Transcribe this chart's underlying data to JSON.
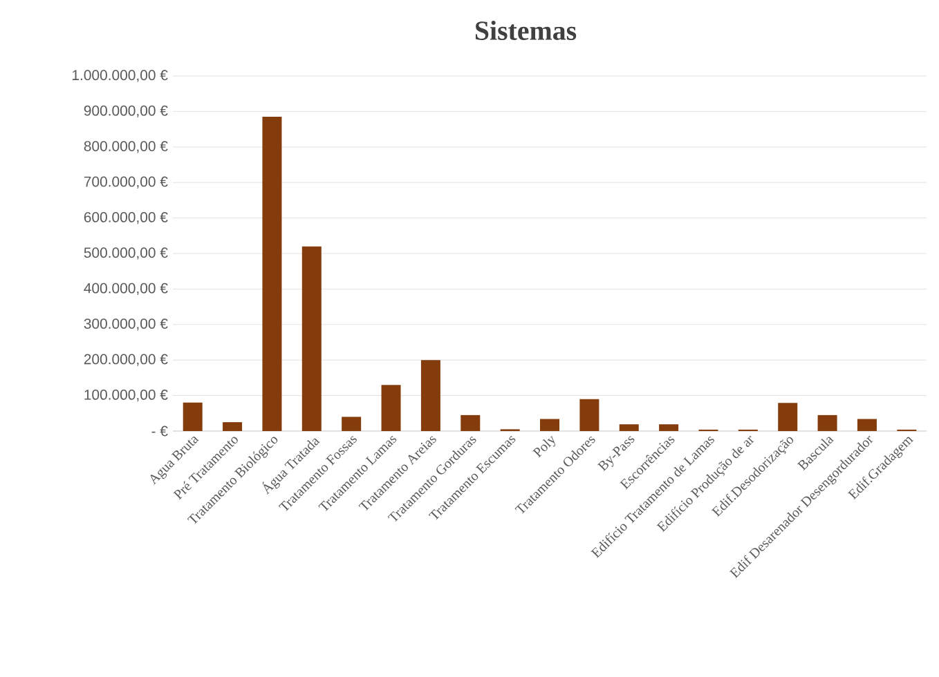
{
  "chart_data": {
    "type": "bar",
    "title": "Sistemas",
    "categories": [
      "Agua Bruta",
      "Pré Tratamento",
      "Tratamento Biológico",
      "Água Tratada",
      "Tratamento Fossas",
      "Tratamento Lamas",
      "Tratamento Areias",
      "Tratamento Gorduras",
      "Tratamento Escumas",
      "Poly",
      "Tratamento Odores",
      "By-Pass",
      "Escorrências",
      "Edifício Tratamento de Lamas",
      "Edifício Produção de ar",
      "Edif.Desodorização",
      "Bascula",
      "Edif Desarenador Desengordurador",
      "Edif.Gradagem"
    ],
    "values": [
      80000,
      25000,
      885000,
      520000,
      40000,
      130000,
      200000,
      45000,
      5000,
      34000,
      90000,
      19000,
      19000,
      4000,
      4000,
      79000,
      45000,
      34000,
      4000
    ],
    "color": "#843c0c",
    "ylim": [
      0,
      1000000
    ],
    "yticks": [
      {
        "value": 0,
        "label": "-  €"
      },
      {
        "value": 100000,
        "label": "100.000,00 €"
      },
      {
        "value": 200000,
        "label": "200.000,00 €"
      },
      {
        "value": 300000,
        "label": "300.000,00 €"
      },
      {
        "value": 400000,
        "label": "400.000,00 €"
      },
      {
        "value": 500000,
        "label": "500.000,00 €"
      },
      {
        "value": 600000,
        "label": "600.000,00 €"
      },
      {
        "value": 700000,
        "label": "700.000,00 €"
      },
      {
        "value": 800000,
        "label": "800.000,00 €"
      },
      {
        "value": 900000,
        "label": "900.000,00 €"
      },
      {
        "value": 1000000,
        "label": "1.000.000,00 €"
      }
    ],
    "grid": "y"
  }
}
